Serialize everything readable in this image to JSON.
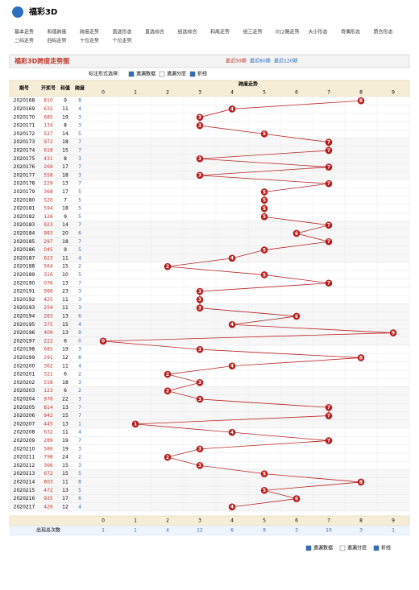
{
  "header": {
    "title": "福彩3D"
  },
  "nav": [
    "基本走势",
    "和值跨度",
    "跨度走势",
    "直选形态",
    "直选综合",
    "组选综合",
    "和尾走势",
    "组三走势",
    "012路走势",
    "大小形态",
    "奇偶形态",
    "质合形态",
    "二码走势",
    "四码走势",
    "十位走势",
    "个位走势"
  ],
  "page_title": "福彩3D跨度走势图",
  "ranges": [
    "最近50期",
    "最近80期",
    "最近120期"
  ],
  "options": {
    "label": "标注形式选择:",
    "items": [
      "遗漏数据",
      "遗漏分层",
      "折线"
    ]
  },
  "table": {
    "headers": [
      "期号",
      "开奖号",
      "和值",
      "跨度",
      "跨度走势"
    ],
    "digits": [
      "0",
      "1",
      "2",
      "3",
      "4",
      "5",
      "6",
      "7",
      "8",
      "9"
    ],
    "rows": [
      [
        "2020168",
        "810",
        9,
        8
      ],
      [
        "2020169",
        "632",
        11,
        4
      ],
      [
        "2020170",
        "685",
        19,
        3
      ],
      [
        "2020171",
        "134",
        8,
        3
      ],
      [
        "2020172",
        "527",
        14,
        5
      ],
      [
        "2020173",
        "972",
        18,
        7
      ],
      [
        "2020174",
        "618",
        15,
        7
      ],
      [
        "2020175",
        "431",
        8,
        3
      ],
      [
        "2020176",
        "269",
        17,
        7
      ],
      [
        "2020177",
        "558",
        18,
        3
      ],
      [
        "2020178",
        "229",
        13,
        7
      ],
      [
        "2020179",
        "368",
        17,
        5
      ],
      [
        "2020180",
        "520",
        7,
        5
      ],
      [
        "2020181",
        "594",
        18,
        5
      ],
      [
        "2020182",
        "126",
        9,
        5
      ],
      [
        "2020183",
        "923",
        14,
        7
      ],
      [
        "2020184",
        "983",
        20,
        6
      ],
      [
        "2020185",
        "297",
        18,
        7
      ],
      [
        "2020186",
        "045",
        9,
        5
      ],
      [
        "2020187",
        "623",
        11,
        4
      ],
      [
        "2020188",
        "564",
        15,
        2
      ],
      [
        "2020189",
        "316",
        10,
        5
      ],
      [
        "2020190",
        "076",
        13,
        7
      ],
      [
        "2020191",
        "986",
        23,
        3
      ],
      [
        "2020192",
        "425",
        11,
        3
      ],
      [
        "2020193",
        "254",
        11,
        3
      ],
      [
        "2020194",
        "283",
        13,
        6
      ],
      [
        "2020195",
        "375",
        15,
        4
      ],
      [
        "2020196",
        "409",
        13,
        9
      ],
      [
        "2020197",
        "222",
        6,
        0
      ],
      [
        "2020198",
        "685",
        19,
        3
      ],
      [
        "2020199",
        "291",
        12,
        8
      ],
      [
        "2020200",
        "362",
        11,
        4
      ],
      [
        "2020201",
        "321",
        6,
        2
      ],
      [
        "2020202",
        "558",
        18,
        3
      ],
      [
        "2020203",
        "123",
        6,
        2
      ],
      [
        "2020204",
        "976",
        22,
        3
      ],
      [
        "2020205",
        "814",
        13,
        7
      ],
      [
        "2020206",
        "942",
        15,
        7
      ],
      [
        "2020207",
        "445",
        13,
        1
      ],
      [
        "2020208",
        "632",
        11,
        4
      ],
      [
        "2020209",
        "289",
        19,
        7
      ],
      [
        "2020210",
        "586",
        19,
        3
      ],
      [
        "2020211",
        "798",
        24,
        2
      ],
      [
        "2020212",
        "366",
        15,
        3
      ],
      [
        "2020213",
        "672",
        15,
        5
      ],
      [
        "2020214",
        "803",
        11,
        8
      ],
      [
        "2020215",
        "472",
        13,
        5
      ],
      [
        "2020216",
        "935",
        17,
        6
      ],
      [
        "2020217",
        "426",
        12,
        4
      ]
    ],
    "stat_label": "出现总次数",
    "stat_counts": [
      1,
      1,
      4,
      12,
      6,
      9,
      3,
      10,
      3,
      1
    ]
  }
}
